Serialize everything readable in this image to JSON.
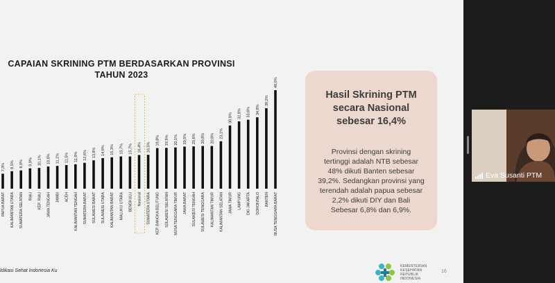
{
  "slide": {
    "title_line1": "CAPAIAN SKRINING PTM BERDASARKAN PROVINSI",
    "title_line2": "TAHUN 2023",
    "footer_text": "ldikasi Sehat Indonesia Ku",
    "page_number": "16",
    "logo_text": [
      "KEMENTERIAN",
      "KESEHATAN",
      "REPUBLIK",
      "INDONESIA"
    ],
    "logo_icon": "kemkes-logo-icon"
  },
  "chart_data": {
    "type": "bar",
    "title": "CAPAIAN SKRINING PTM BERDASARKAN PROVINSI TAHUN 2023",
    "categories": [
      "PAPUA BARAT",
      "KALIMANTAN UTARA",
      "SUMATERA SELATAN",
      "RIAU",
      "KEP. RIAU",
      "JAWA TENGAH",
      "JAMBI",
      "ACEH",
      "KALIMANTAN TENGAH",
      "SUMATERA BARAT",
      "SULAWESI BARAT",
      "SULAWESI UTARA",
      "KALIMANTAN BARAT",
      "MALUKU UTARA",
      "BENGKULU",
      "Nasional",
      "SUMATERA UTARA",
      "KEP. BANGKA BELITUNG",
      "SULAWESI SELATAN",
      "NUSA TENGGARA TIMUR",
      "JAWA BARAT",
      "SULAWESI TENGAH",
      "SULAWESI TENGGARA",
      "KALIMANTAN TIMUR",
      "KALIMANTAN SELATAN",
      "JAWA TIMUR",
      "LAMPUNG",
      "DKI JAKARTA",
      "GORONTALO",
      "BANTEN",
      "NUSA TENGGARA BARAT"
    ],
    "values": [
      7.3,
      8.5,
      8.9,
      9.9,
      10.1,
      10.8,
      11.1,
      11.5,
      11.9,
      12.6,
      13.8,
      14.9,
      15.3,
      15.7,
      15.7,
      16.4,
      16.5,
      19.8,
      19.9,
      20.1,
      20.5,
      20.6,
      20.8,
      20.8,
      23.1,
      30.8,
      32.8,
      33.6,
      34.8,
      39.2,
      48.0
    ],
    "value_labels": [
      "7,3%",
      "8,5%",
      "8,9%",
      "9,9%",
      "10,1%",
      "10,8%",
      "11,1%",
      "11,5%",
      "11,9%",
      "12,6%",
      "13,8%",
      "14,9%",
      "15,3%",
      "15,7%",
      "15,7%",
      "16,4%",
      "16,5%",
      "19,8%",
      "19,9%",
      "20,1%",
      "20,5%",
      "20,6%",
      "20,8%",
      "20,8%",
      "23,1%",
      "30,8%",
      "32,8%",
      "33,6%",
      "34,8%",
      "39,2%",
      "48,0%"
    ],
    "highlight_category": "Nasional",
    "bar_color": "#111111",
    "highlight_color": "#e8b84a",
    "ylim": [
      0,
      50
    ],
    "grid": false,
    "legend": "none"
  },
  "summary": {
    "title": "Hasil Skrining PTM secara Nasional sebesar 16,4%",
    "body": "Provinsi dengan skrining tertinggi adalah NTB sebesar 48% dikuti Banten sebesar 39,2%. Sedangkan provinsi yang terendah adalah papua sebesar 2,2% dikuti DIY dan Bali Sebesar 6,8% dan 6,9%."
  },
  "participant": {
    "name": "Eva Susanti PTM",
    "signal_icon": "signal-bars-icon"
  }
}
